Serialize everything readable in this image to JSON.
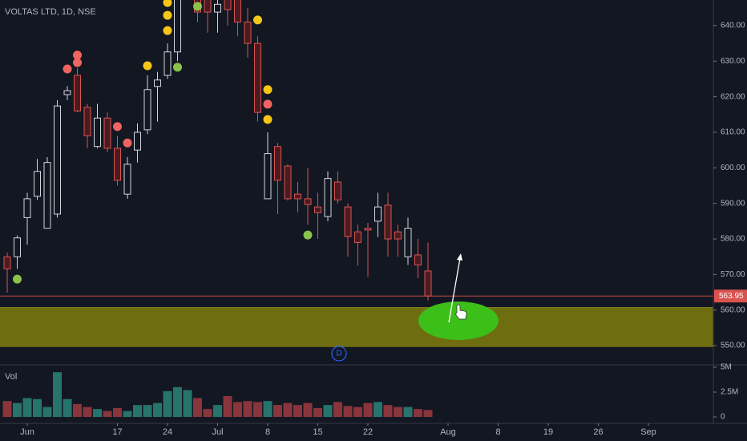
{
  "chart_data": {
    "type": "candlestick",
    "title": "VOLTAS LTD, 1D, NSE",
    "volume_label": "Vol",
    "categories": [
      null,
      null,
      "Jun",
      null,
      null,
      null,
      null,
      null,
      null,
      null,
      null,
      "17",
      null,
      null,
      null,
      null,
      "24",
      null,
      null,
      null,
      null,
      "Jul",
      null,
      null,
      null,
      null,
      "8",
      null,
      null,
      null,
      null,
      "15",
      null,
      null,
      null,
      null,
      "22",
      null,
      null,
      null,
      null,
      null,
      null,
      null,
      "Aug",
      null,
      null,
      null,
      null,
      "8",
      null,
      null,
      null,
      null,
      "19",
      null,
      null,
      null,
      null,
      "26",
      null,
      null,
      null,
      null,
      "Sep"
    ],
    "open": [
      575,
      575,
      586,
      592,
      583,
      587,
      620.6,
      626,
      617,
      606,
      614,
      605.5,
      592.6,
      605,
      610.7,
      622.9,
      626,
      632.6,
      650,
      655,
      648,
      643.8,
      650,
      648,
      641,
      635,
      591.3,
      606,
      600.5,
      592.6,
      591.3,
      589,
      586.3,
      596,
      589,
      582,
      583,
      585,
      589.5,
      582,
      575,
      575.5,
      571,
      null,
      null,
      null,
      null,
      null,
      null,
      null,
      null,
      null,
      null,
      null,
      null,
      null,
      null,
      null,
      null,
      null,
      null,
      null,
      null,
      null,
      null
    ],
    "high": [
      576.2,
      581,
      593,
      602.5,
      603,
      619,
      623,
      628,
      618,
      618,
      615.6,
      609,
      603,
      612.5,
      626,
      627,
      635,
      657,
      658,
      657,
      650,
      648,
      652,
      650,
      645,
      637,
      610,
      607,
      601,
      596,
      600,
      593,
      599,
      599,
      590,
      584,
      584.5,
      593,
      593,
      584,
      586,
      580,
      579,
      null,
      null,
      null,
      null,
      null,
      null,
      null,
      null,
      null,
      null,
      null,
      null,
      null,
      null,
      null,
      null,
      null,
      null,
      null,
      null,
      null,
      null
    ],
    "low": [
      564.9,
      571.6,
      578.4,
      591,
      583,
      586,
      619,
      615.6,
      605.5,
      605.5,
      604.4,
      595,
      591.3,
      601.5,
      609.5,
      613,
      625,
      630,
      648,
      641,
      638,
      638,
      640,
      637,
      631,
      613,
      591.3,
      587,
      590.8,
      587.5,
      584,
      580,
      585,
      590,
      575,
      572.5,
      569.4,
      580.5,
      575,
      575,
      572.7,
      569,
      562.7,
      null,
      null,
      null,
      null,
      null,
      null,
      null,
      null,
      null,
      null,
      null,
      null,
      null,
      null,
      null,
      null,
      null,
      null,
      null,
      null,
      null,
      null
    ],
    "close": [
      571.6,
      580.3,
      591.3,
      599,
      601.5,
      617.4,
      621.7,
      616,
      609,
      614,
      605.5,
      596.5,
      601,
      610,
      622,
      624.7,
      632.6,
      650,
      655,
      643.8,
      643.8,
      646,
      644.5,
      641,
      635,
      615.6,
      604,
      596.5,
      591.3,
      591.3,
      589.7,
      587.4,
      597,
      591,
      580.7,
      579,
      582.5,
      589,
      580,
      580,
      583,
      572.7,
      563.95,
      null,
      null,
      null,
      null,
      null,
      null,
      null,
      null,
      null,
      null,
      null,
      null,
      null,
      null,
      null,
      null,
      null,
      null,
      null,
      null,
      null,
      null
    ],
    "volume": [
      1600000,
      1400000,
      1900000,
      1800000,
      1000000,
      4500000,
      1800000,
      1300000,
      1000000,
      800000,
      600000,
      900000,
      600000,
      1200000,
      1200000,
      1400000,
      2600000,
      3000000,
      2700000,
      1900000,
      800000,
      1200000,
      2100000,
      1500000,
      1600000,
      1500000,
      1600000,
      1200000,
      1400000,
      1200000,
      1400000,
      900000,
      1200000,
      1500000,
      1100000,
      1000000,
      1400000,
      1500000,
      1200000,
      1000000,
      1000000,
      800000,
      700000,
      null,
      null,
      null,
      null,
      null,
      null,
      null,
      null,
      null,
      null,
      null,
      null,
      null,
      null,
      null,
      null,
      null,
      null,
      null,
      null,
      null,
      null
    ],
    "up_color": "#d1d4dc",
    "down_color": "#d9534f",
    "volume_up_color": "#26746b",
    "volume_down_color": "#8a343c",
    "ylim": [
      544.6,
      647.2
    ],
    "yticks": [
      {
        "value": 550,
        "label": "550.00"
      },
      {
        "value": 560,
        "label": "560.00"
      },
      {
        "value": 570,
        "label": "570.00"
      },
      {
        "value": 580,
        "label": "580.00"
      },
      {
        "value": 590,
        "label": "590.00"
      },
      {
        "value": 600,
        "label": "600.00"
      },
      {
        "value": 610,
        "label": "610.00"
      },
      {
        "value": 620,
        "label": "620.00"
      },
      {
        "value": 630,
        "label": "630.00"
      },
      {
        "value": 640,
        "label": "640.00"
      }
    ],
    "volume_ylim": [
      -400000,
      5080000
    ],
    "volume_yticks": [
      0,
      {
        "value": 2500000,
        "label": "2.5M"
      },
      {
        "value": 5000000,
        "label": "5M"
      }
    ],
    "zone": {
      "low": 549.6,
      "high": 560.7,
      "color": "#737311"
    },
    "signals": [
      {
        "x": 1,
        "y": 568.7,
        "color": "#8bc34a"
      },
      {
        "x": 6,
        "y": 627.8,
        "color": "#ef6461"
      },
      {
        "x": 7,
        "y": 631.7,
        "color": "#ef6461"
      },
      {
        "x": 7,
        "y": 629.6,
        "color": "#ef6461"
      },
      {
        "x": 11,
        "y": 611.6,
        "color": "#ef6461"
      },
      {
        "x": 12,
        "y": 607,
        "color": "#ef6461"
      },
      {
        "x": 14,
        "y": 628.7,
        "color": "#f5c518"
      },
      {
        "x": 16,
        "y": 646.5,
        "color": "#f5c518"
      },
      {
        "x": 16,
        "y": 642.9,
        "color": "#f5c518"
      },
      {
        "x": 16,
        "y": 638.6,
        "color": "#f5c518"
      },
      {
        "x": 17,
        "y": 628.3,
        "color": "#8bc34a"
      },
      {
        "x": 19,
        "y": 645.4,
        "color": "#8bc34a"
      },
      {
        "x": 25,
        "y": 641.6,
        "color": "#f5c518"
      },
      {
        "x": 26,
        "y": 622,
        "color": "#f5c518"
      },
      {
        "x": 26,
        "y": 617.9,
        "color": "#ef6461"
      },
      {
        "x": 26,
        "y": 613.6,
        "color": "#f5c518"
      },
      {
        "x": 30,
        "y": 581.1,
        "color": "#8bc34a"
      }
    ],
    "event_marker": "D"
  }
}
